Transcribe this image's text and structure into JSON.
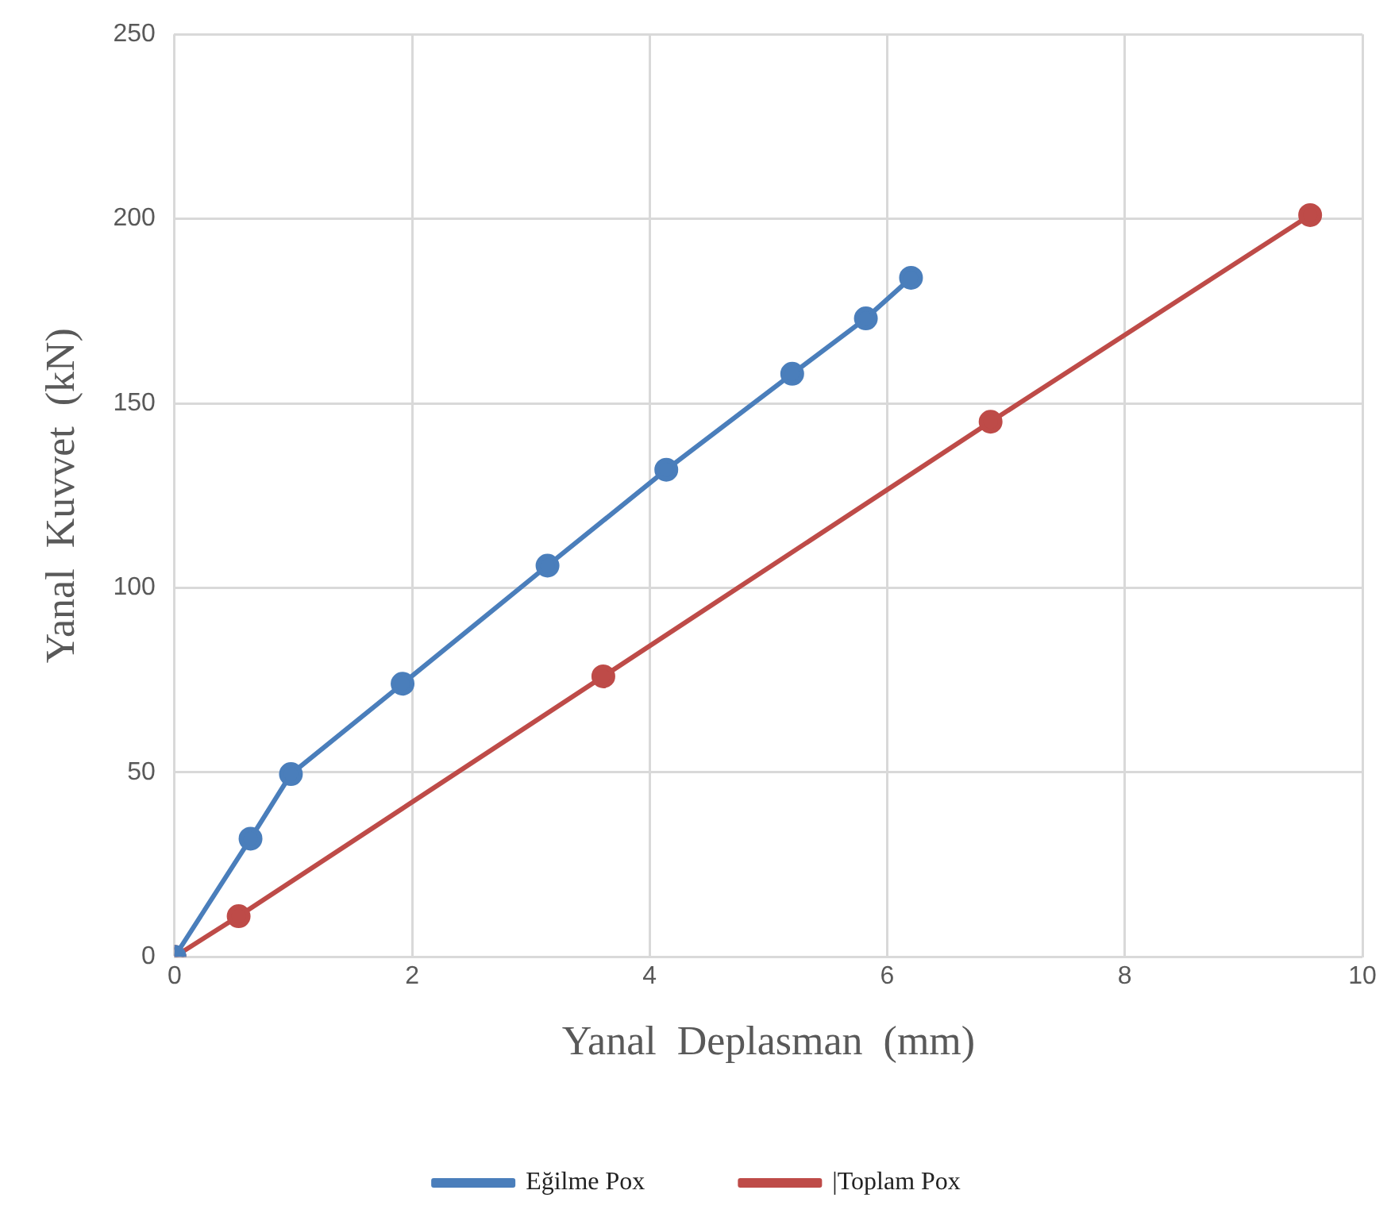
{
  "chart_data": {
    "type": "line",
    "xlabel": "Yanal  Deplasman  (mm)",
    "ylabel": "Yanal  Kuvvet  (kN)",
    "xlim": [
      0,
      10
    ],
    "xticks": [
      0,
      2,
      4,
      6,
      8,
      10
    ],
    "ylim": [
      0,
      250
    ],
    "yticks": [
      0,
      50,
      100,
      150,
      200,
      250
    ],
    "grid": true,
    "legend": "bottom",
    "marker": "circle",
    "line_style": "solid",
    "series": [
      {
        "name": "Eğilme Pox",
        "color": "#4a7ebb",
        "x": [
          0,
          0.64,
          0.98,
          1.92,
          3.14,
          4.14,
          5.2,
          5.82,
          6.2
        ],
        "values": [
          0,
          32,
          49.5,
          74,
          106,
          132,
          158,
          173,
          184
        ]
      },
      {
        "name": "|Toplam Pox",
        "color": "#be4b48",
        "x": [
          0,
          0.54,
          3.61,
          6.87,
          9.56
        ],
        "values": [
          0,
          11,
          76,
          145,
          201
        ]
      }
    ]
  }
}
